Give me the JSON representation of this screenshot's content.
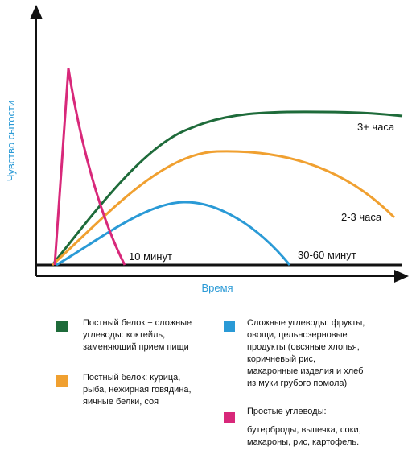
{
  "axes": {
    "y_label": "Чувство сытости",
    "x_label": "Время"
  },
  "curve_labels": [
    "3+ часа",
    "2-3 часа",
    "10 минут",
    "30-60 минут"
  ],
  "legend": [
    {
      "color": "#1e6b3a",
      "lines": [
        "Постный белок + сложные",
        "углеводы: коктейль,",
        "заменяющий прием пищи"
      ]
    },
    {
      "color": "#f0a030",
      "lines": [
        "Постный белок: курица,",
        "рыба, нежирная говядина,",
        "яичные белки, соя"
      ]
    },
    {
      "color": "#2a9ad6",
      "lines": [
        "Сложные углеводы: фрукты,",
        "овощи, цельнозерновые",
        "продукты (овсяные хлопья,",
        "коричневый рис,",
        "макаронные изделия и хлеб",
        "из муки грубого помола)"
      ]
    },
    {
      "color": "#d8287a",
      "lines": [
        "Простые углеводы:",
        "бутерброды, выпечка, соки,",
        "макароны, рис, картофель."
      ]
    }
  ]
}
